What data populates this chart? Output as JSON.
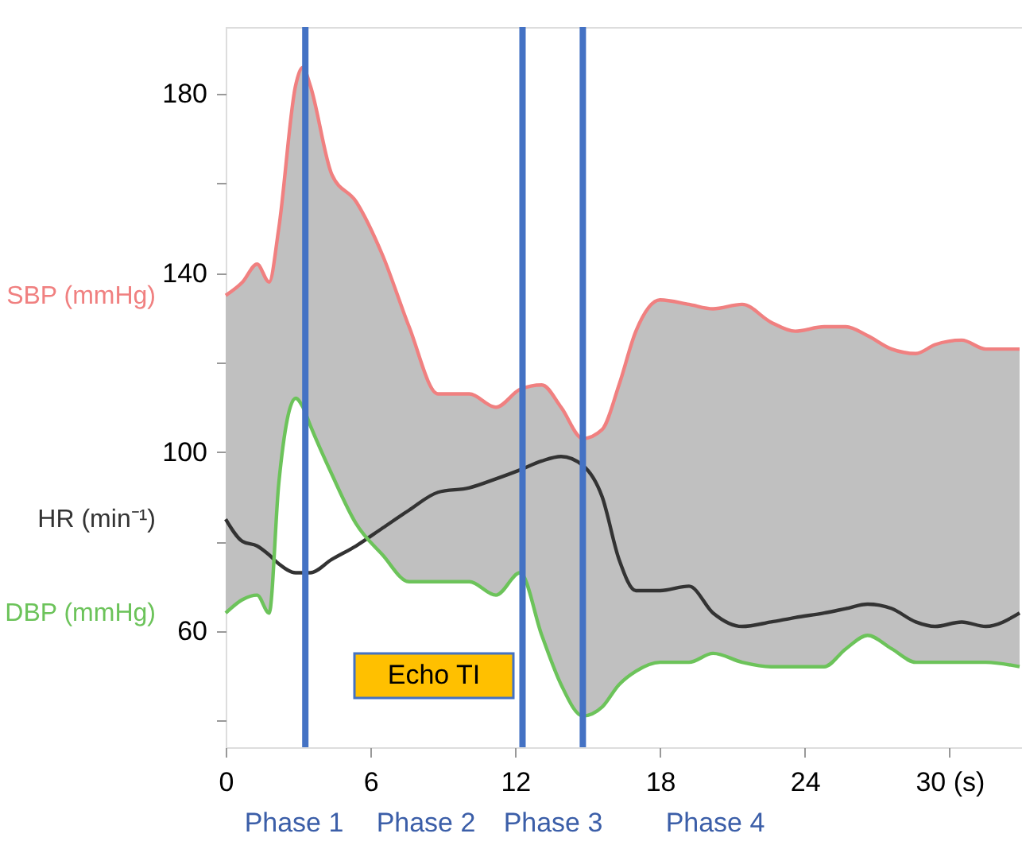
{
  "chart_data": {
    "type": "line",
    "x": [
      0,
      0.7,
      1.3,
      1.8,
      2.2,
      2.9,
      3.2,
      3.5,
      4.4,
      5.4,
      6.5,
      7.6,
      8.8,
      10.1,
      11.2,
      12.2,
      13.1,
      13.9,
      14.8,
      15.6,
      16.3,
      17.0,
      18.0,
      19.2,
      20.2,
      21.4,
      22.6,
      23.6,
      24.8,
      25.7,
      26.6,
      27.6,
      28.6,
      29.4,
      30.5,
      31.5,
      32.9
    ],
    "series": [
      {
        "name": "SBP (mmHg)",
        "color": "#f08080",
        "values": [
          135,
          138,
          142,
          138,
          150,
          182,
          186,
          182,
          162,
          156,
          144,
          128,
          113,
          113,
          110,
          114,
          115,
          110,
          103,
          105,
          115,
          127,
          134,
          133,
          132,
          133,
          129,
          127,
          128,
          128,
          126,
          123,
          122,
          124,
          125,
          123,
          123
        ]
      },
      {
        "name": "HR (min⁻¹)",
        "color": "#333333",
        "values": [
          85,
          80,
          79,
          77,
          75,
          73,
          73,
          73,
          76,
          79,
          83,
          87,
          91,
          92,
          94,
          96,
          98,
          99,
          97,
          90,
          76,
          69,
          69,
          70,
          64,
          61,
          62,
          63,
          64,
          65,
          66,
          65,
          62,
          61,
          62,
          61,
          64
        ],
        "lower": [
          64,
          67,
          68,
          64,
          93,
          112,
          110,
          106,
          95,
          84,
          77,
          71,
          71,
          71,
          68,
          73,
          59,
          48,
          41,
          43,
          48,
          51,
          53,
          53,
          55,
          53,
          52,
          52,
          52,
          56,
          59,
          56,
          53,
          53,
          53,
          53,
          52
        ],
        "upper": [
          135,
          138,
          142,
          138,
          150,
          182,
          186,
          182,
          162,
          156,
          144,
          128,
          113,
          113,
          110,
          114,
          115,
          110,
          103,
          105,
          115,
          127,
          134,
          133,
          132,
          133,
          129,
          127,
          128,
          128,
          126,
          123,
          122,
          124,
          125,
          123,
          123
        ]
      },
      {
        "name": "DBP (mmHg)",
        "color": "#6cc35a",
        "values": [
          64,
          67,
          68,
          64,
          93,
          112,
          110,
          106,
          95,
          84,
          77,
          71,
          71,
          71,
          68,
          73,
          59,
          48,
          41,
          43,
          48,
          51,
          53,
          53,
          55,
          53,
          52,
          52,
          52,
          56,
          59,
          56,
          53,
          53,
          53,
          53,
          52
        ]
      }
    ],
    "xlim": [
      0,
      33
    ],
    "xticks": [
      0,
      6,
      12,
      18,
      24,
      {
        "value": 30,
        "label": "30 (s)"
      }
    ],
    "ylim": [
      34,
      195
    ],
    "yticks": [
      {
        "value": 40,
        "label": null
      },
      60,
      {
        "value": 80,
        "label": null
      },
      100,
      {
        "value": 120,
        "label": null
      },
      140,
      {
        "value": 160,
        "label": null
      },
      180
    ],
    "ref_lines": [
      {
        "axis": "x",
        "value": 3.3,
        "color": "#4472c4"
      },
      {
        "axis": "x",
        "value": 12.3,
        "color": "#4472c4"
      },
      {
        "axis": "x",
        "value": 14.8,
        "color": "#4472c4"
      }
    ],
    "annotations": [
      "Echo TI",
      "Phase 1",
      "Phase 2",
      "Phase 3",
      "Phase 4"
    ],
    "grid": false,
    "marker": "none",
    "line_style": "solid"
  }
}
